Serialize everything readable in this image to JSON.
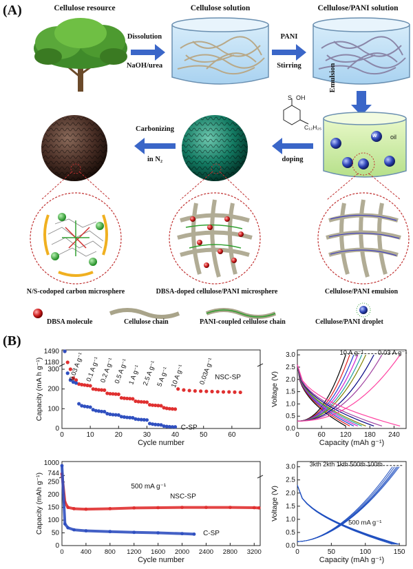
{
  "panel_a": {
    "label": "(A)",
    "stages": {
      "resource": "Cellulose resource",
      "solution": "Cellulose solution",
      "pani_solution": "Cellulose/PANI solution"
    },
    "arrows": {
      "dissolution": "Dissolution",
      "naoh_urea": "NaOH/urea",
      "pani": "PANI",
      "stirring": "Stirring",
      "emulsion": "Emulsion",
      "carbonizing": "Carbonizing",
      "in_n2": "in N₂",
      "doping": "doping"
    },
    "beaker_labels": {
      "w": "w",
      "oil": "oil"
    },
    "chem": {
      "so3h": "OH",
      "alkyl": "C₁₂H₂₅",
      "s": "S",
      "o": "O"
    },
    "node_label": "N",
    "captions": {
      "carbon": "N/S-codoped carbon microsphere",
      "dbsa_sphere": "DBSA-doped cellulose/PANI microsphere",
      "emulsion": "Cellulose/PANI emulsion"
    },
    "legend": {
      "dbsa": "DBSA molecule",
      "chain": "Cellulose chain",
      "pani_chain": "PANI-coupled cellulose chain",
      "droplet": "Cellulose/PANI droplet"
    }
  },
  "panel_b": {
    "label": "(B)"
  },
  "chart_data": [
    {
      "type": "scatter",
      "title": "",
      "xlabel": "Cycle number",
      "ylabel": "Capacity (mA h g⁻¹)",
      "xlim": [
        0,
        70
      ],
      "xticks": [
        "0",
        "10",
        "20",
        "30",
        "40",
        "50",
        "60"
      ],
      "yticks_lower": [
        "0",
        "100",
        "200",
        "300"
      ],
      "yticks_upper": [
        "1180",
        "1490"
      ],
      "rate_labels": [
        "0.03 A g⁻¹",
        "0.1 A g⁻¹",
        "0.2 A g⁻¹",
        "0.5 A g⁻¹",
        "1 A g⁻¹",
        "2.5 A g⁻¹",
        "5 A g⁻¹",
        "10 A g⁻¹",
        "0.03A g⁻¹"
      ],
      "series": [
        {
          "name": "NSC-SP",
          "color": "#e03030",
          "segments": [
            {
              "x": [
                1,
                2,
                3,
                4,
                5
              ],
              "y": [
                1450,
                1180,
                300,
                255,
                245
              ]
            },
            {
              "x": [
                6,
                7,
                8,
                9,
                10
              ],
              "y": [
                225,
                222,
                220,
                218,
                216
              ]
            },
            {
              "x": [
                11,
                12,
                13,
                14,
                15
              ],
              "y": [
                200,
                198,
                196,
                195,
                194
              ]
            },
            {
              "x": [
                16,
                17,
                18,
                19,
                20
              ],
              "y": [
                178,
                176,
                175,
                174,
                173
              ]
            },
            {
              "x": [
                21,
                22,
                23,
                24,
                25
              ],
              "y": [
                155,
                153,
                152,
                151,
                150
              ]
            },
            {
              "x": [
                26,
                27,
                28,
                29,
                30
              ],
              "y": [
                138,
                136,
                135,
                134,
                133
              ]
            },
            {
              "x": [
                31,
                32,
                33,
                34,
                35
              ],
              "y": [
                120,
                118,
                117,
                116,
                115
              ]
            },
            {
              "x": [
                36,
                37,
                38,
                39,
                40
              ],
              "y": [
                105,
                102,
                100,
                99,
                98
              ]
            },
            {
              "x": [
                41,
                43,
                45,
                47,
                49,
                51,
                53,
                55,
                57,
                59,
                61,
                63
              ],
              "y": [
                200,
                195,
                192,
                190,
                189,
                188,
                187,
                186,
                185,
                185,
                184,
                183
              ]
            }
          ]
        },
        {
          "name": "C-SP",
          "color": "#3050c0",
          "segments": [
            {
              "x": [
                1,
                2,
                3,
                4,
                5
              ],
              "y": [
                1490,
                280,
                245,
                235,
                230
              ]
            },
            {
              "x": [
                6,
                7,
                8,
                9,
                10
              ],
              "y": [
                125,
                115,
                112,
                110,
                108
              ]
            },
            {
              "x": [
                11,
                12,
                13,
                14,
                15
              ],
              "y": [
                95,
                90,
                88,
                86,
                85
              ]
            },
            {
              "x": [
                16,
                17,
                18,
                19,
                20
              ],
              "y": [
                75,
                72,
                70,
                69,
                68
              ]
            },
            {
              "x": [
                21,
                22,
                23,
                24,
                25
              ],
              "y": [
                60,
                58,
                56,
                55,
                54
              ]
            },
            {
              "x": [
                26,
                27,
                28,
                29,
                30
              ],
              "y": [
                48,
                46,
                45,
                44,
                43
              ]
            },
            {
              "x": [
                31,
                32,
                33,
                34,
                35
              ],
              "y": [
                25,
                22,
                20,
                19,
                18
              ]
            },
            {
              "x": [
                36,
                37,
                38,
                39,
                40
              ],
              "y": [
                12,
                10,
                9,
                8,
                8
              ]
            }
          ]
        }
      ]
    },
    {
      "type": "line",
      "xlabel": "Capacity (mAh g⁻¹)",
      "ylabel": "Voltage (V)",
      "xlim": [
        0,
        270
      ],
      "ylim": [
        0,
        3.2
      ],
      "xticks": [
        "0",
        "60",
        "120",
        "180",
        "240"
      ],
      "yticks": [
        "0.0",
        "0.5",
        "1.0",
        "1.5",
        "2.0",
        "2.5",
        "3.0"
      ],
      "annotations": [
        "10 A g⁻¹",
        "0.03 A g⁻¹"
      ],
      "series_capacities": [
        120,
        130,
        140,
        150,
        160,
        170,
        190,
        210,
        255
      ],
      "colors": [
        "#000000",
        "#e02020",
        "#2040d0",
        "#d020d0",
        "#20a0a0",
        "#808000",
        "#000080",
        "#a040a0",
        "#ff40a0"
      ]
    },
    {
      "type": "scatter",
      "xlabel": "Cycle number",
      "ylabel": "Capacity (mAh g⁻¹)",
      "xlim": [
        0,
        3300
      ],
      "xticks": [
        "0",
        "400",
        "800",
        "1200",
        "1600",
        "2000",
        "2400",
        "2800",
        "3200"
      ],
      "yticks_lower": [
        "0",
        "50",
        "100",
        "150",
        "200",
        "250"
      ],
      "yticks_upper": [
        "744",
        "1000"
      ],
      "annotation": "500 mA g⁻¹",
      "series": [
        {
          "name": "NSC-SP",
          "color": "#e03030",
          "x": [
            0,
            50,
            100,
            200,
            400,
            800,
            1200,
            1600,
            2000,
            2400,
            2800,
            3200,
            3280
          ],
          "y": [
            744,
            170,
            150,
            145,
            143,
            145,
            148,
            149,
            150,
            150,
            150,
            149,
            148
          ]
        },
        {
          "name": "C-SP",
          "color": "#3050c0",
          "x": [
            0,
            50,
            100,
            200,
            400,
            800,
            1200,
            1600,
            2000,
            2200
          ],
          "y": [
            1000,
            85,
            70,
            62,
            58,
            55,
            52,
            50,
            47,
            45
          ]
        }
      ]
    },
    {
      "type": "line",
      "xlabel": "Capacity (mAh g⁻¹)",
      "ylabel": "Voltage (V)",
      "xlim": [
        0,
        160
      ],
      "ylim": [
        0,
        3.2
      ],
      "xticks": [
        "0",
        "50",
        "100",
        "150"
      ],
      "yticks": [
        "0.0",
        "0.5",
        "1.0",
        "1.5",
        "2.0",
        "2.5",
        "3.0"
      ],
      "annotations": [
        "3kth 2kth 1kth 500th 100th",
        "500 mA g⁻¹"
      ],
      "series_capacities": [
        140,
        143,
        146,
        148,
        150
      ],
      "colors": [
        "#2050c0",
        "#2050c0",
        "#2050c0",
        "#2050c0",
        "#2050c0"
      ]
    }
  ]
}
